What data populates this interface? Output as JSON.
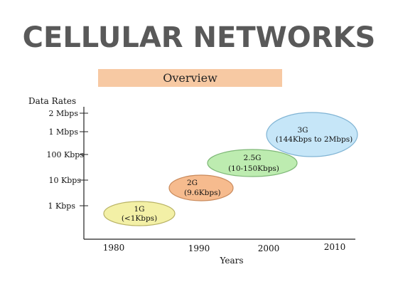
{
  "title": "CELLULAR NETWORKS",
  "subtitle": "Overview",
  "axes": {
    "y_title": "Data Rates",
    "x_title": "Years",
    "y_ticks": [
      "2 Mbps",
      "1 Mbps",
      "100 Kbps",
      "10 Kbps",
      "1 Kbps"
    ],
    "x_ticks": [
      "1980",
      "1990",
      "2000",
      "2010"
    ]
  },
  "generations": [
    {
      "name": "1G",
      "rate": "(<1Kbps)",
      "color": "#f3f0a6",
      "stroke": "#b8b264"
    },
    {
      "name": "2G",
      "rate": "(9.6Kbps)",
      "color": "#f6bb8e",
      "stroke": "#c98a5c"
    },
    {
      "name": "2.5G",
      "rate": "(10-150Kbps)",
      "color": "#bdecb0",
      "stroke": "#7fb878"
    },
    {
      "name": "3G",
      "rate": "(144Kbps to 2Mbps)",
      "color": "#c6e6f8",
      "stroke": "#80b4d4"
    }
  ]
}
